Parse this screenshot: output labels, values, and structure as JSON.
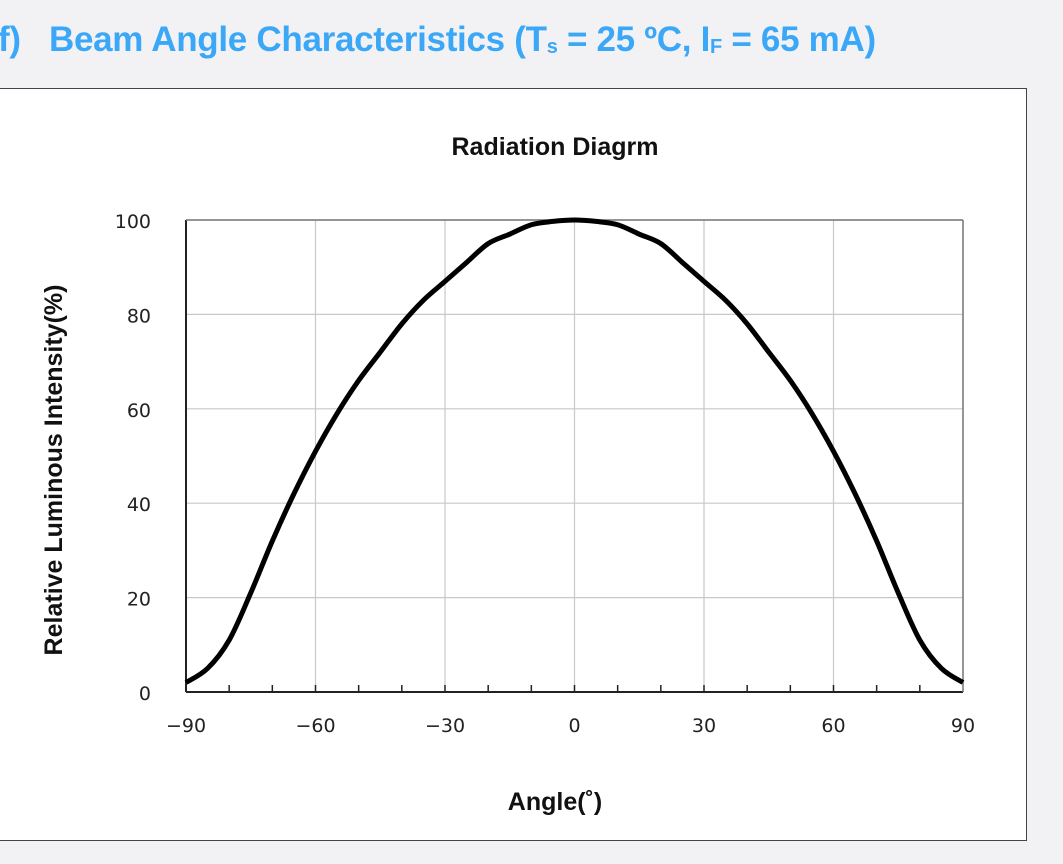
{
  "header": {
    "prefix": "f)",
    "title": "Beam Angle Characteristics (T",
    "ts_sub": "s",
    "mid": " = 25 ºC, I",
    "if_sub": "F",
    "end": " = 65 mA)"
  },
  "colors": {
    "title": "#3ba7f7",
    "curve": "#000000",
    "grid": "#c8c8c8"
  },
  "chart_data": {
    "type": "line",
    "title": "Radiation Diagrm",
    "xlabel": "Angle(˚)",
    "ylabel": "Relative Luminous Intensity(%)",
    "xlim": [
      -90,
      90
    ],
    "ylim": [
      0,
      100
    ],
    "xticks": [
      "-90",
      "-60",
      "-30",
      "0",
      "30",
      "60",
      "90"
    ],
    "yticks": [
      "0",
      "20",
      "40",
      "60",
      "80",
      "100"
    ],
    "grid": true,
    "series": [
      {
        "name": "Relative Luminous Intensity",
        "x": [
          -90,
          -85,
          -80,
          -75,
          -70,
          -65,
          -60,
          -55,
          -50,
          -45,
          -40,
          -35,
          -30,
          -25,
          -20,
          -15,
          -10,
          -5,
          0,
          5,
          10,
          15,
          20,
          25,
          30,
          35,
          40,
          45,
          50,
          55,
          60,
          65,
          70,
          75,
          80,
          85,
          90
        ],
        "y": [
          2,
          5,
          11,
          21,
          32,
          42,
          51,
          59,
          66,
          72,
          78,
          83,
          87,
          91,
          95,
          97,
          99,
          99.7,
          100,
          99.7,
          99,
          97,
          95,
          91,
          87,
          83,
          78,
          72,
          66,
          59,
          51,
          42,
          32,
          21,
          11,
          5,
          2
        ]
      }
    ]
  }
}
